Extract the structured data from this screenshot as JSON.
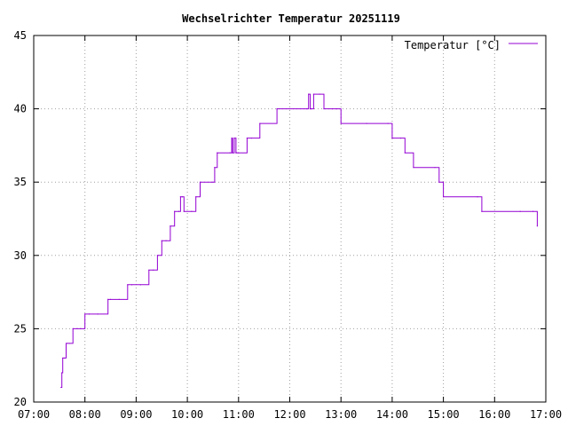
{
  "chart_data": {
    "type": "line",
    "title": "Wechselrichter Temperatur 20251119",
    "xlabel": "",
    "ylabel": "",
    "grid": true,
    "legend_position": "top-right",
    "xlim": [
      "07:00",
      "17:00"
    ],
    "ylim": [
      20,
      45
    ],
    "x_ticks": [
      "07:00",
      "08:00",
      "09:00",
      "10:00",
      "11:00",
      "12:00",
      "13:00",
      "14:00",
      "15:00",
      "16:00",
      "17:00"
    ],
    "y_ticks": [
      "20",
      "25",
      "30",
      "35",
      "40",
      "45"
    ],
    "colors": {
      "series": "#9400d3",
      "grid": "#a0a0a0",
      "axis": "#000000"
    },
    "series": [
      {
        "name": "Temperatur [°C]",
        "x": [
          "07:32",
          "07:33",
          "07:34",
          "07:36",
          "07:38",
          "07:40",
          "07:42",
          "07:46",
          "07:51",
          "07:55",
          "08:00",
          "08:05",
          "08:15",
          "08:27",
          "08:30",
          "08:40",
          "08:50",
          "08:55",
          "09:05",
          "09:15",
          "09:20",
          "09:25",
          "09:30",
          "09:35",
          "09:40",
          "09:45",
          "09:50",
          "09:52",
          "09:54",
          "09:56",
          "10:05",
          "10:10",
          "10:15",
          "10:30",
          "10:32",
          "10:35",
          "10:50",
          "10:52",
          "10:53",
          "10:55",
          "10:57",
          "10:58",
          "11:00",
          "11:10",
          "11:15",
          "11:25",
          "11:45",
          "12:20",
          "12:22",
          "12:24",
          "12:25",
          "12:28",
          "12:35",
          "12:40",
          "12:50",
          "12:55",
          "13:00",
          "13:30",
          "13:55",
          "14:00",
          "14:10",
          "14:15",
          "14:25",
          "14:50",
          "14:55",
          "15:00",
          "15:40",
          "15:45",
          "16:30",
          "16:45",
          "16:50"
        ],
        "values": [
          21,
          22,
          23,
          23,
          24,
          24,
          24,
          25,
          25,
          25,
          26,
          26,
          26,
          27,
          27,
          27,
          28,
          28,
          28,
          29,
          29,
          30,
          31,
          31,
          32,
          33,
          33,
          34,
          34,
          33,
          33,
          34,
          35,
          35,
          36,
          37,
          37,
          38,
          37,
          38,
          37,
          37,
          37,
          38,
          38,
          39,
          40,
          40,
          41,
          40,
          40,
          41,
          41,
          40,
          40,
          40,
          39,
          39,
          39,
          38,
          38,
          37,
          36,
          36,
          35,
          34,
          34,
          33,
          33,
          33,
          32
        ]
      }
    ]
  }
}
